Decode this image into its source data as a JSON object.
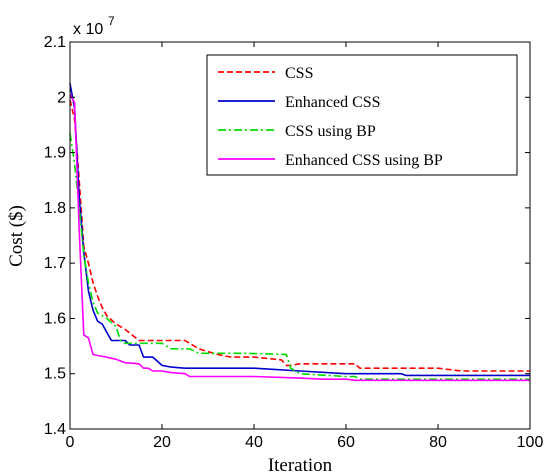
{
  "chart_data": {
    "type": "line",
    "title": "",
    "xlabel": "Iteration",
    "ylabel": "Cost ($)",
    "xlim": [
      0,
      100
    ],
    "ylim": [
      1.4,
      2.1
    ],
    "exponent_base": "x 10",
    "exponent_power": "7",
    "xticks": [
      "0",
      "20",
      "40",
      "60",
      "80",
      "100"
    ],
    "yticks": [
      "1.4",
      "1.5",
      "1.6",
      "1.7",
      "1.8",
      "1.9",
      "2",
      "2.1"
    ],
    "grid": false,
    "legend_position": "top-right",
    "series": [
      {
        "name": "CSS",
        "color": "#ff0000",
        "dash": "dashed",
        "x": [
          0,
          1,
          2,
          3,
          4,
          5,
          6,
          7,
          8,
          10,
          11,
          12,
          15,
          25,
          26,
          28,
          32,
          35,
          40,
          46,
          47,
          48,
          50,
          52,
          62,
          63,
          64,
          80,
          85,
          100
        ],
        "y": [
          1.995,
          1.96,
          1.85,
          1.73,
          1.7,
          1.665,
          1.64,
          1.62,
          1.605,
          1.59,
          1.585,
          1.58,
          1.56,
          1.56,
          1.555,
          1.545,
          1.535,
          1.53,
          1.53,
          1.525,
          1.515,
          1.515,
          1.518,
          1.518,
          1.518,
          1.51,
          1.51,
          1.51,
          1.505,
          1.505
        ]
      },
      {
        "name": "Enhanced CSS",
        "color": "#0000cc",
        "dash": "solid",
        "x": [
          0,
          1,
          2,
          3,
          4,
          5,
          6,
          7,
          8,
          9,
          12,
          13,
          15,
          16,
          18,
          20,
          22,
          25,
          40,
          50,
          60,
          72,
          73,
          100
        ],
        "y": [
          2.025,
          1.98,
          1.82,
          1.72,
          1.65,
          1.615,
          1.595,
          1.59,
          1.575,
          1.56,
          1.56,
          1.552,
          1.552,
          1.53,
          1.53,
          1.515,
          1.512,
          1.51,
          1.51,
          1.505,
          1.5,
          1.5,
          1.497,
          1.497
        ]
      },
      {
        "name": "CSS using BP",
        "color": "#00dd00",
        "dash": "dashdot",
        "x": [
          0,
          1,
          2,
          3,
          4,
          5,
          6,
          7,
          8,
          10,
          11,
          12,
          20,
          22,
          26,
          28,
          38,
          47,
          48,
          49,
          50,
          60,
          62,
          63,
          100
        ],
        "y": [
          1.935,
          1.88,
          1.8,
          1.715,
          1.665,
          1.63,
          1.61,
          1.605,
          1.6,
          1.585,
          1.56,
          1.555,
          1.555,
          1.545,
          1.545,
          1.537,
          1.537,
          1.535,
          1.51,
          1.505,
          1.5,
          1.495,
          1.495,
          1.49,
          1.49
        ]
      },
      {
        "name": "Enhanced CSS using BP",
        "color": "#ff00ff",
        "dash": "solid",
        "x": [
          0,
          1,
          2,
          3,
          4,
          5,
          6,
          8,
          10,
          12,
          15,
          16,
          17,
          18,
          20,
          22,
          25,
          26,
          30,
          40,
          50,
          55,
          60,
          62,
          100
        ],
        "y": [
          2.005,
          1.99,
          1.76,
          1.57,
          1.565,
          1.535,
          1.533,
          1.53,
          1.526,
          1.52,
          1.518,
          1.51,
          1.51,
          1.505,
          1.505,
          1.502,
          1.5,
          1.495,
          1.495,
          1.495,
          1.492,
          1.49,
          1.49,
          1.488,
          1.488
        ]
      }
    ]
  }
}
